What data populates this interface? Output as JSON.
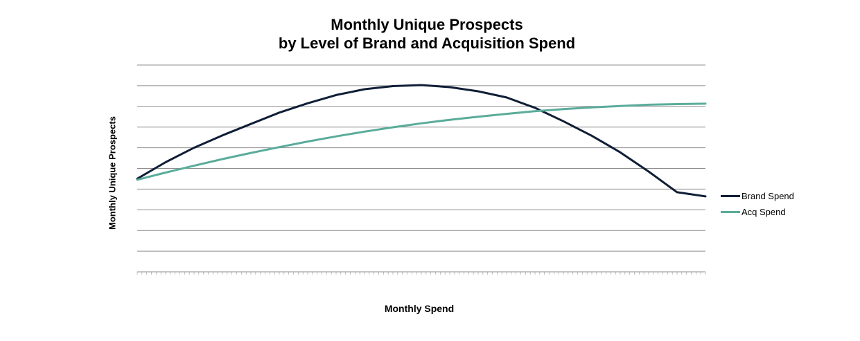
{
  "chart_data": {
    "type": "line",
    "title": [
      "Monthly Unique Prospects",
      "by Level of Brand and Acquisition Spend"
    ],
    "xlabel": "Monthly Spend",
    "ylabel": "Monthly Unique Prospects",
    "xlim": [
      0,
      100
    ],
    "ylim": [
      0,
      10
    ],
    "grid": true,
    "legend_position": "right",
    "x": [
      0,
      5,
      10,
      15,
      20,
      25,
      30,
      35,
      40,
      45,
      50,
      55,
      60,
      65,
      70,
      75,
      80,
      85,
      90,
      95,
      100
    ],
    "series": [
      {
        "name": "Brand Spend",
        "color": "#0f1e36",
        "values": [
          4.5,
          5.3,
          6.0,
          6.6,
          7.15,
          7.7,
          8.15,
          8.55,
          8.83,
          8.98,
          9.03,
          8.93,
          8.73,
          8.43,
          7.93,
          7.28,
          6.58,
          5.78,
          4.85,
          3.85,
          3.65
        ]
      },
      {
        "name": "Acq Spend",
        "color": "#5aac9a",
        "values": [
          4.45,
          4.8,
          5.13,
          5.45,
          5.75,
          6.03,
          6.3,
          6.55,
          6.78,
          6.99,
          7.18,
          7.35,
          7.5,
          7.64,
          7.77,
          7.87,
          7.95,
          8.02,
          8.08,
          8.11,
          8.13
        ]
      }
    ]
  }
}
